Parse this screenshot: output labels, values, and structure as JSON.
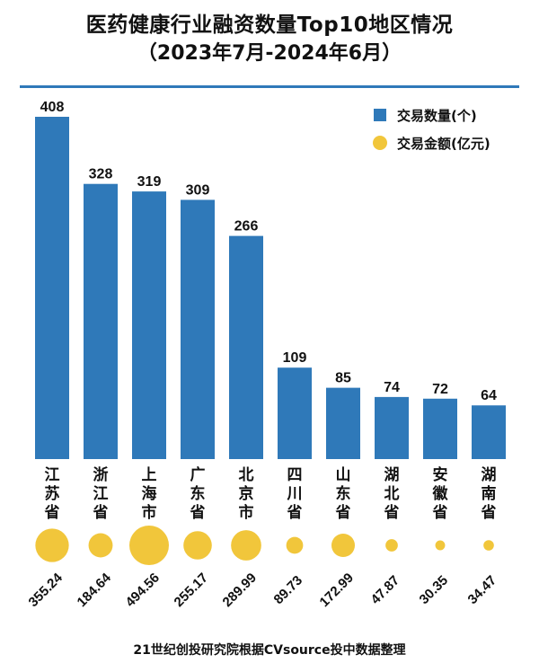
{
  "title": "医药健康行业融资数量Top10地区情况",
  "subtitle": "（2023年7月-2024年6月）",
  "source": "21世纪创投研究院根据CVsource投中数据整理",
  "colors": {
    "bar": "#2f79b9",
    "bubble": "#f1c63b",
    "rule": "#2f79b9"
  },
  "chart_data": {
    "type": "bar",
    "categories": [
      "江苏省",
      "浙江省",
      "上海市",
      "广东省",
      "北京市",
      "四川省",
      "山东省",
      "湖北省",
      "安徽省",
      "湖南省"
    ],
    "series": [
      {
        "name": "交易数量(个)",
        "type": "bar",
        "values": [
          408,
          328,
          319,
          309,
          266,
          109,
          85,
          74,
          72,
          64
        ]
      },
      {
        "name": "交易金额(亿元)",
        "type": "bubble",
        "values": [
          355.24,
          184.64,
          494.56,
          255.17,
          289.99,
          89.73,
          172.99,
          47.87,
          30.35,
          34.47
        ]
      }
    ],
    "legend": [
      "交易数量(个)",
      "交易金额(亿元)"
    ],
    "legend_position": "top-right",
    "grid": false
  }
}
